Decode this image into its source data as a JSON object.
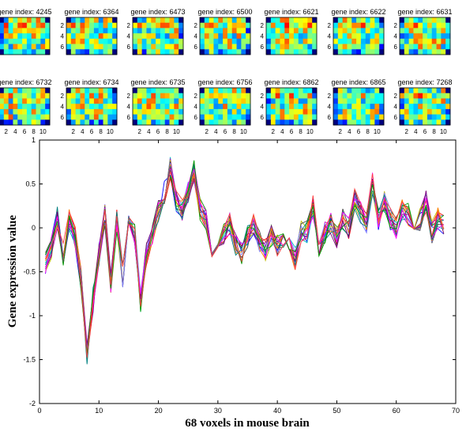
{
  "chart_data": [
    {
      "type": "heatmap",
      "panel_titles": [
        "gene index: 4245",
        "gene index: 6364",
        "gene index: 6473",
        "gene index: 6500",
        "gene index: 6621",
        "gene index: 6622",
        "gene index: 6631",
        "gene index: 6732",
        "gene index: 6734",
        "gene index: 6735",
        "gene index: 6756",
        "gene index: 6862",
        "gene index: 6865",
        "gene index: 7268"
      ],
      "grid": {
        "rows": 7,
        "cols": 11
      },
      "yticks": [
        "2",
        "4",
        "6"
      ],
      "xticks": [
        "2",
        "4",
        "6",
        "8",
        "10"
      ],
      "colormap": "jet",
      "outside_color": "#00007f"
    },
    {
      "type": "line",
      "xlabel": "68 voxels in mouse brain",
      "ylabel": "Gene expression value",
      "xlim": [
        0,
        70
      ],
      "ylim": [
        -2,
        1
      ],
      "xticks": [
        0,
        10,
        20,
        30,
        40,
        50,
        60,
        70
      ],
      "yticks": [
        -2,
        -1.5,
        -1,
        -0.5,
        0,
        0.5,
        1
      ],
      "grid": false,
      "legend": "none",
      "series_count": 14,
      "series_colors": [
        "#0000ff",
        "#008000",
        "#ff0000",
        "#00bfbf",
        "#bf00bf",
        "#bfbf00",
        "#404040",
        "#7f7fff",
        "#ff7f00",
        "#007f7f",
        "#7f007f",
        "#ff00ff",
        "#00a000",
        "#ff4040"
      ],
      "x": [
        1,
        2,
        3,
        4,
        5,
        6,
        7,
        8,
        9,
        10,
        11,
        12,
        13,
        14,
        15,
        16,
        17,
        18,
        19,
        20,
        21,
        22,
        23,
        24,
        25,
        26,
        27,
        28,
        29,
        30,
        31,
        32,
        33,
        34,
        35,
        36,
        37,
        38,
        39,
        40,
        41,
        42,
        43,
        44,
        45,
        46,
        47,
        48,
        49,
        50,
        51,
        52,
        53,
        54,
        55,
        56,
        57,
        58,
        59,
        60,
        61,
        62,
        63,
        64,
        65,
        66,
        67,
        68
      ],
      "mean": [
        -0.4,
        -0.22,
        0.12,
        -0.3,
        0.1,
        -0.1,
        -0.6,
        -1.45,
        -0.75,
        -0.3,
        0.15,
        -0.62,
        0.08,
        -0.55,
        0.12,
        -0.05,
        -0.85,
        -0.3,
        -0.05,
        0.2,
        0.4,
        0.68,
        0.3,
        0.2,
        0.4,
        0.65,
        0.22,
        0.08,
        -0.35,
        -0.15,
        -0.05,
        0.05,
        -0.2,
        -0.3,
        -0.1,
        0.05,
        -0.15,
        -0.25,
        -0.1,
        -0.2,
        -0.1,
        -0.15,
        -0.35,
        -0.05,
        -0.05,
        0.25,
        -0.3,
        -0.05,
        0.05,
        -0.1,
        0.1,
        0.0,
        0.32,
        0.18,
        0.05,
        0.5,
        0.1,
        0.3,
        0.1,
        0.0,
        0.2,
        0.15,
        0.0,
        0.1,
        0.3,
        -0.05,
        0.1,
        0.05
      ]
    }
  ]
}
